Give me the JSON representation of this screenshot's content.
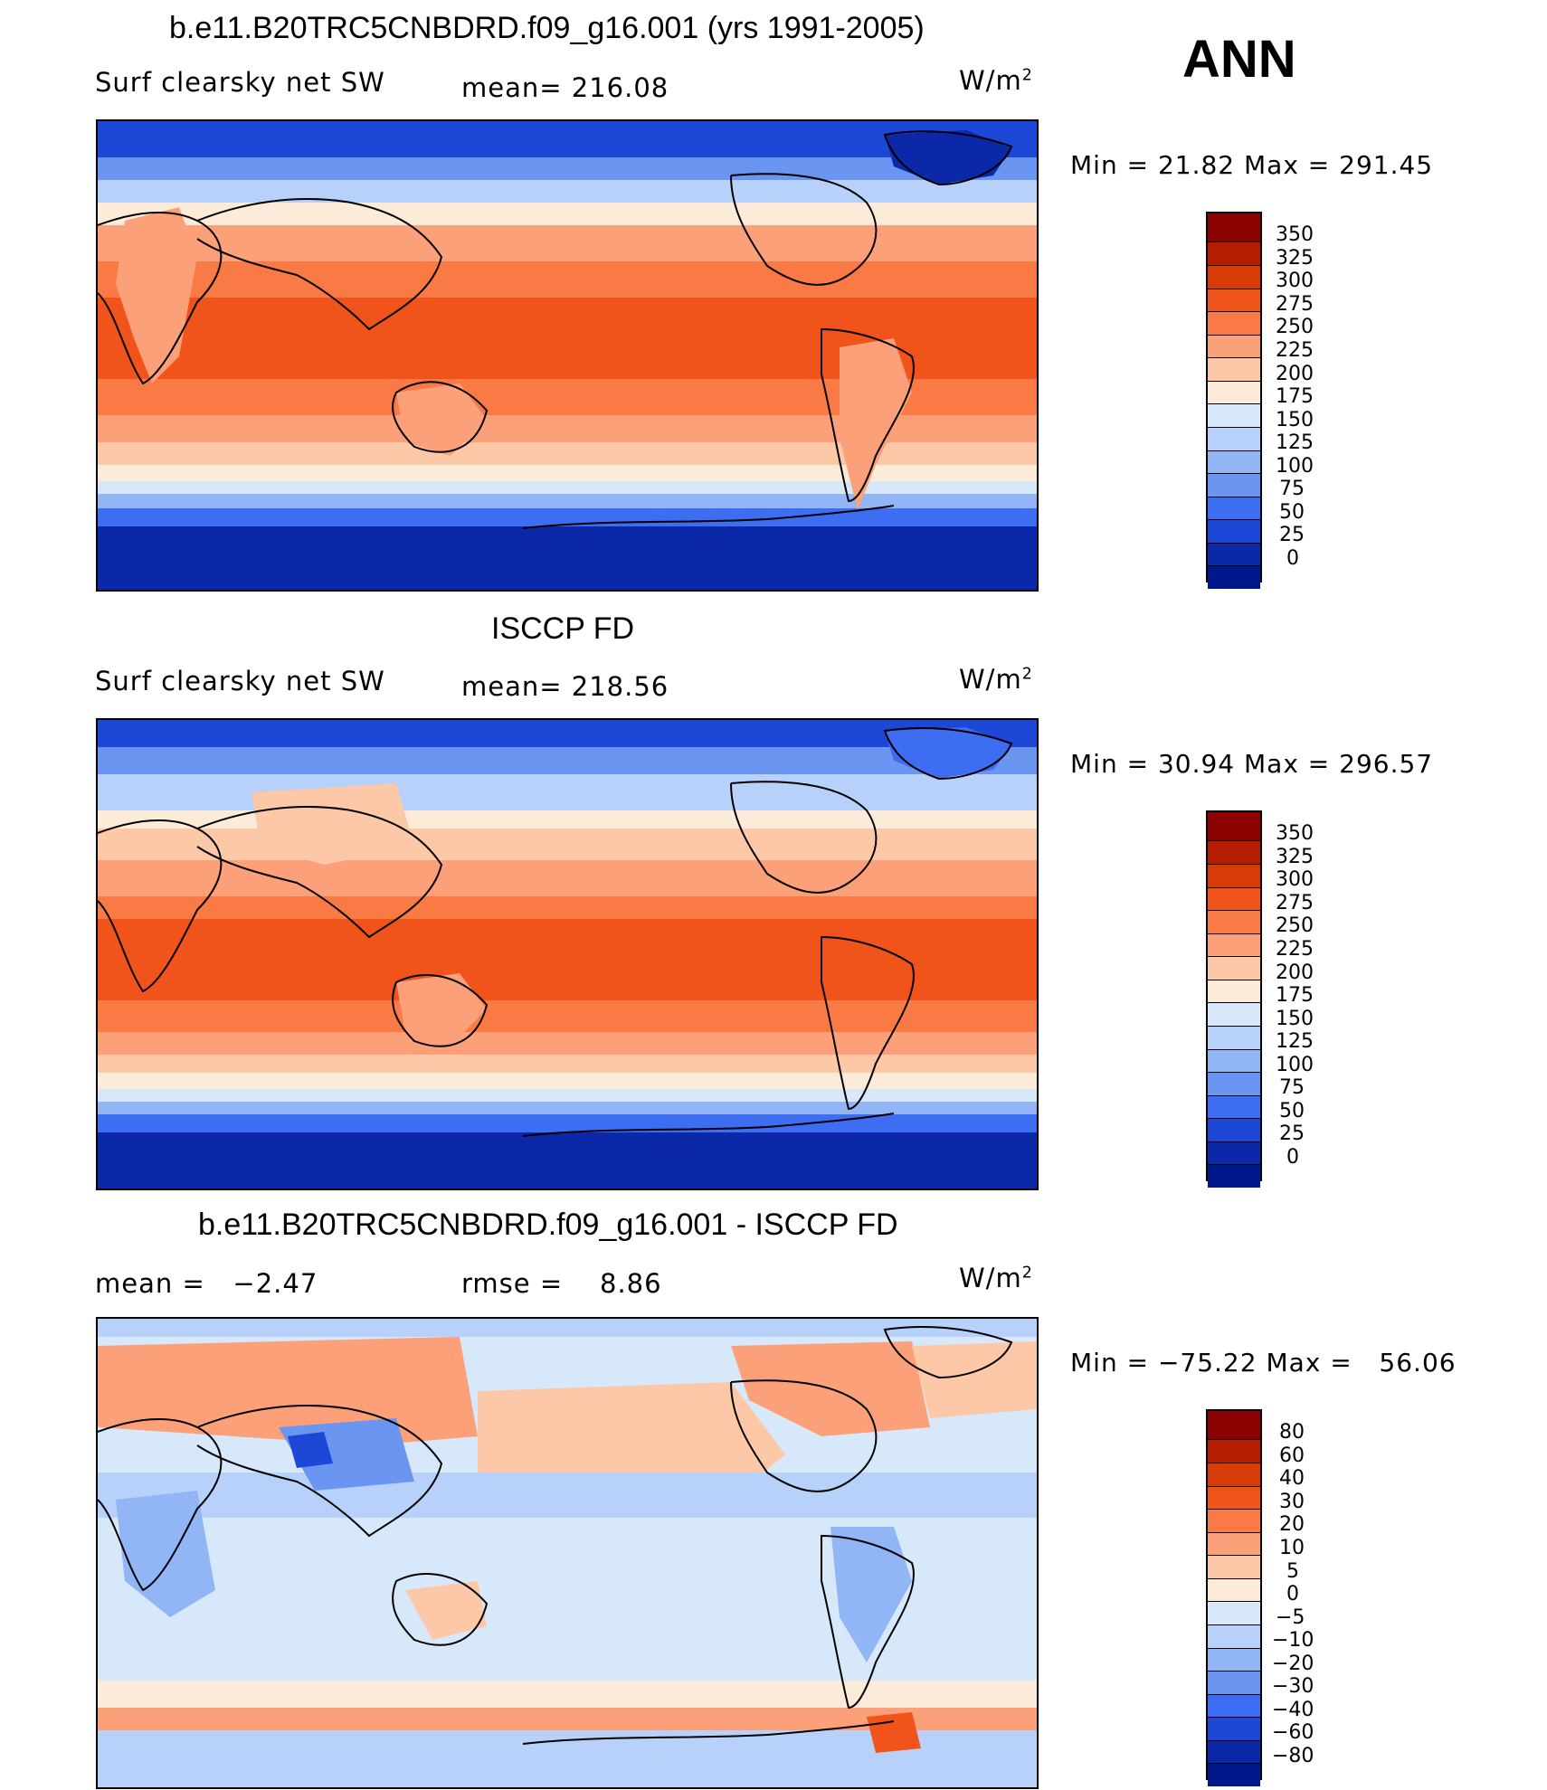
{
  "season": "ANN",
  "panels": [
    {
      "title": "b.e11.B20TRC5CNBDRD.f09_g16.001 (yrs 1991-2005)",
      "left": "Surf clearsky net SW",
      "middle": "mean= 216.08",
      "units": "W/m",
      "units_sup": "2",
      "minmax": "Min =   21.82 Max = 291.45",
      "colorbar_labels": [
        "350",
        "325",
        "300",
        "275",
        "250",
        "225",
        "200",
        "175",
        "150",
        "125",
        "100",
        "75",
        "50",
        "25",
        "0"
      ]
    },
    {
      "title": "ISCCP FD",
      "left": "Surf clearsky net SW",
      "middle": "mean= 218.56",
      "units": "W/m",
      "units_sup": "2",
      "minmax": "Min =   30.94 Max = 296.57",
      "colorbar_labels": [
        "350",
        "325",
        "300",
        "275",
        "250",
        "225",
        "200",
        "175",
        "150",
        "125",
        "100",
        "75",
        "50",
        "25",
        "0"
      ]
    },
    {
      "title": "b.e11.B20TRC5CNBDRD.f09_g16.001 - ISCCP FD",
      "left": "mean =   −2.47",
      "middle": "rmse =    8.86",
      "units": "W/m",
      "units_sup": "2",
      "minmax": "Min = −75.22 Max =   56.06",
      "colorbar_labels": [
        "80",
        "60",
        "40",
        "30",
        "20",
        "10",
        "5",
        "0",
        "−5",
        "−10",
        "−20",
        "−30",
        "−40",
        "−60",
        "−80"
      ]
    }
  ],
  "colors": {
    "scale": [
      "#8b0000",
      "#b51c00",
      "#d63b08",
      "#f0541b",
      "#fa7a45",
      "#fca07a",
      "#fdc8a8",
      "#fdebd9",
      "#d7e8fb",
      "#b7d1fa",
      "#92b5f6",
      "#6a95f0",
      "#3d6df0",
      "#1d47d6",
      "#0a28a8",
      "#00188a"
    ],
    "land_outline": "#000000"
  }
}
